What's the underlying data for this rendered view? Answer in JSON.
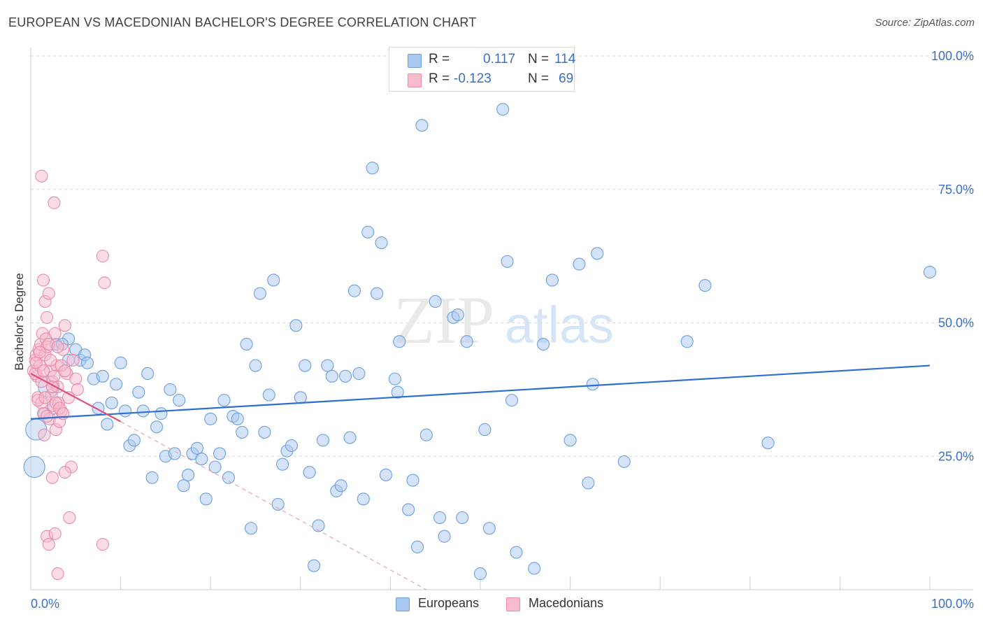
{
  "header": {
    "title": "EUROPEAN VS MACEDONIAN BACHELOR'S DEGREE CORRELATION CHART",
    "source": "Source: ZipAtlas.com"
  },
  "watermark": {
    "zip": "ZIP",
    "atlas": "atlas"
  },
  "legend": {
    "rows": [
      {
        "r_label": "R =",
        "r_value": "0.117",
        "n_label": "N =",
        "n_value": "114",
        "color": "#a9c8f0",
        "border": "#6b9fe0"
      },
      {
        "r_label": "R =",
        "r_value": "-0.123",
        "n_label": "N =",
        "n_value": "69",
        "color": "#f8bccd",
        "border": "#ec89a8"
      }
    ],
    "bottom": [
      {
        "label": "Europeans",
        "color": "#a9c8f0",
        "border": "#6b9fe0"
      },
      {
        "label": "Macedonians",
        "color": "#f8bccd",
        "border": "#ec89a8"
      }
    ]
  },
  "chart_data": {
    "type": "scatter",
    "title": "EUROPEAN VS MACEDONIAN BACHELOR'S DEGREE CORRELATION CHART",
    "xlabel": "",
    "ylabel": "Bachelor's Degree",
    "xlim": [
      0,
      100
    ],
    "ylim": [
      0,
      100
    ],
    "x_tick_labels": [
      "0.0%",
      "100.0%"
    ],
    "y_tick_labels": [
      "100.0%",
      "75.0%",
      "50.0%",
      "25.0%"
    ],
    "y_ticks": [
      100,
      75,
      50,
      25
    ],
    "grid": true,
    "series": [
      {
        "name": "Europeans",
        "color": "#6b9fe0",
        "fill": "#a9c8f0",
        "trend": {
          "x": [
            0,
            100
          ],
          "y": [
            32.0,
            42.0
          ],
          "color": "#2f6fd0"
        },
        "points": [
          {
            "x": 0.4,
            "y": 23,
            "big": true
          },
          {
            "x": 0.6,
            "y": 30,
            "big": true
          },
          {
            "x": 2,
            "y": 38,
            "big": true
          },
          {
            "x": 2.5,
            "y": 34
          },
          {
            "x": 1.5,
            "y": 33
          },
          {
            "x": 2.8,
            "y": 46
          },
          {
            "x": 4.2,
            "y": 47
          },
          {
            "x": 4.2,
            "y": 43
          },
          {
            "x": 3.5,
            "y": 46
          },
          {
            "x": 5,
            "y": 45
          },
          {
            "x": 5.5,
            "y": 43
          },
          {
            "x": 6,
            "y": 44
          },
          {
            "x": 6.3,
            "y": 42.5
          },
          {
            "x": 7,
            "y": 39.5
          },
          {
            "x": 7.5,
            "y": 34
          },
          {
            "x": 8,
            "y": 40
          },
          {
            "x": 8.5,
            "y": 31
          },
          {
            "x": 9,
            "y": 35
          },
          {
            "x": 9.5,
            "y": 38.5
          },
          {
            "x": 10,
            "y": 42.5
          },
          {
            "x": 10.5,
            "y": 33.5
          },
          {
            "x": 11,
            "y": 27
          },
          {
            "x": 11.5,
            "y": 28
          },
          {
            "x": 12,
            "y": 37
          },
          {
            "x": 12.5,
            "y": 33.5
          },
          {
            "x": 13,
            "y": 40.5
          },
          {
            "x": 13.5,
            "y": 21
          },
          {
            "x": 14,
            "y": 30.5
          },
          {
            "x": 14.5,
            "y": 33
          },
          {
            "x": 15,
            "y": 25
          },
          {
            "x": 15.5,
            "y": 37.5
          },
          {
            "x": 16,
            "y": 25.5
          },
          {
            "x": 16.5,
            "y": 35.5
          },
          {
            "x": 17,
            "y": 19.5
          },
          {
            "x": 17.5,
            "y": 21.5
          },
          {
            "x": 18,
            "y": 25.5
          },
          {
            "x": 18.5,
            "y": 26.5
          },
          {
            "x": 19,
            "y": 24.5
          },
          {
            "x": 19.5,
            "y": 17
          },
          {
            "x": 20,
            "y": 32
          },
          {
            "x": 20.5,
            "y": 23
          },
          {
            "x": 21,
            "y": 25.5
          },
          {
            "x": 21.5,
            "y": 35.5
          },
          {
            "x": 22,
            "y": 21
          },
          {
            "x": 22.5,
            "y": 32.5
          },
          {
            "x": 23,
            "y": 32
          },
          {
            "x": 23.5,
            "y": 29.5
          },
          {
            "x": 24,
            "y": 46
          },
          {
            "x": 24.5,
            "y": 11.5
          },
          {
            "x": 25,
            "y": 42
          },
          {
            "x": 25.5,
            "y": 55.5
          },
          {
            "x": 26,
            "y": 29.5
          },
          {
            "x": 26.5,
            "y": 36.5
          },
          {
            "x": 27,
            "y": 58
          },
          {
            "x": 27.5,
            "y": 16
          },
          {
            "x": 28,
            "y": 23.5
          },
          {
            "x": 28.5,
            "y": 26
          },
          {
            "x": 29,
            "y": 27
          },
          {
            "x": 29.5,
            "y": 49.5
          },
          {
            "x": 30,
            "y": 36
          },
          {
            "x": 30.5,
            "y": 42
          },
          {
            "x": 31,
            "y": 22
          },
          {
            "x": 31.5,
            "y": 4.5
          },
          {
            "x": 32,
            "y": 12
          },
          {
            "x": 32.5,
            "y": 28
          },
          {
            "x": 33,
            "y": 42
          },
          {
            "x": 33.5,
            "y": 40
          },
          {
            "x": 34,
            "y": 18.5
          },
          {
            "x": 34.5,
            "y": 19.5
          },
          {
            "x": 35,
            "y": 40
          },
          {
            "x": 35.5,
            "y": 28.5
          },
          {
            "x": 36,
            "y": 56
          },
          {
            "x": 36.5,
            "y": 40.5
          },
          {
            "x": 37,
            "y": 17
          },
          {
            "x": 37.5,
            "y": 67
          },
          {
            "x": 38,
            "y": 79
          },
          {
            "x": 38.5,
            "y": 55.5
          },
          {
            "x": 39,
            "y": 65
          },
          {
            "x": 39.5,
            "y": 21.5
          },
          {
            "x": 40.5,
            "y": 39.5
          },
          {
            "x": 40.8,
            "y": 37
          },
          {
            "x": 41,
            "y": 46.5
          },
          {
            "x": 42,
            "y": 15
          },
          {
            "x": 42.5,
            "y": 20.5
          },
          {
            "x": 43,
            "y": 8
          },
          {
            "x": 43.5,
            "y": 87
          },
          {
            "x": 44,
            "y": 29
          },
          {
            "x": 45,
            "y": 54
          },
          {
            "x": 45.5,
            "y": 13.5
          },
          {
            "x": 46,
            "y": 10
          },
          {
            "x": 47,
            "y": 51
          },
          {
            "x": 47.5,
            "y": 51.5
          },
          {
            "x": 48,
            "y": 13.5
          },
          {
            "x": 48.5,
            "y": 46.5
          },
          {
            "x": 50,
            "y": 3
          },
          {
            "x": 50.5,
            "y": 30
          },
          {
            "x": 51,
            "y": 11.5
          },
          {
            "x": 52.5,
            "y": 90
          },
          {
            "x": 53,
            "y": 61.5
          },
          {
            "x": 53.5,
            "y": 35.5
          },
          {
            "x": 54,
            "y": 7
          },
          {
            "x": 56,
            "y": 4
          },
          {
            "x": 57,
            "y": 46
          },
          {
            "x": 58,
            "y": 58
          },
          {
            "x": 60,
            "y": 28
          },
          {
            "x": 61,
            "y": 61
          },
          {
            "x": 62,
            "y": 20
          },
          {
            "x": 62.5,
            "y": 38.5
          },
          {
            "x": 63,
            "y": 63
          },
          {
            "x": 66,
            "y": 24
          },
          {
            "x": 73,
            "y": 46.5
          },
          {
            "x": 75,
            "y": 57
          },
          {
            "x": 82,
            "y": 27.5
          },
          {
            "x": 100,
            "y": 59.5
          }
        ]
      },
      {
        "name": "Macedonians",
        "color": "#ec89a8",
        "fill": "#f8bccd",
        "trend": {
          "x": [
            0,
            10
          ],
          "y": [
            40.5,
            31.5
          ],
          "color": "#e0507d"
        },
        "trend_extension": {
          "x": [
            10,
            44
          ],
          "y": [
            31.5,
            0
          ]
        },
        "points": [
          {
            "x": 0.3,
            "y": 41
          },
          {
            "x": 0.5,
            "y": 43
          },
          {
            "x": 0.6,
            "y": 44
          },
          {
            "x": 0.7,
            "y": 40
          },
          {
            "x": 0.8,
            "y": 36
          },
          {
            "x": 0.9,
            "y": 45
          },
          {
            "x": 1,
            "y": 42
          },
          {
            "x": 1.1,
            "y": 46
          },
          {
            "x": 1.2,
            "y": 35
          },
          {
            "x": 1.3,
            "y": 48
          },
          {
            "x": 1.4,
            "y": 33
          },
          {
            "x": 1.5,
            "y": 29
          },
          {
            "x": 1.6,
            "y": 44
          },
          {
            "x": 1.7,
            "y": 47
          },
          {
            "x": 1.8,
            "y": 45.5
          },
          {
            "x": 1.2,
            "y": 77.5
          },
          {
            "x": 1.4,
            "y": 58
          },
          {
            "x": 1.6,
            "y": 54
          },
          {
            "x": 1.8,
            "y": 51
          },
          {
            "x": 2,
            "y": 55.5
          },
          {
            "x": 2.1,
            "y": 32
          },
          {
            "x": 2.2,
            "y": 41
          },
          {
            "x": 2.3,
            "y": 36.5
          },
          {
            "x": 2.4,
            "y": 39
          },
          {
            "x": 2.5,
            "y": 34.5
          },
          {
            "x": 2.6,
            "y": 72.5
          },
          {
            "x": 2.7,
            "y": 48
          },
          {
            "x": 2.8,
            "y": 30
          },
          {
            "x": 2.9,
            "y": 42
          },
          {
            "x": 3,
            "y": 38
          },
          {
            "x": 3.1,
            "y": 35
          },
          {
            "x": 3.2,
            "y": 31.5
          },
          {
            "x": 3.4,
            "y": 33.5
          },
          {
            "x": 3.6,
            "y": 45
          },
          {
            "x": 3.8,
            "y": 49.5
          },
          {
            "x": 4,
            "y": 40.5
          },
          {
            "x": 4.2,
            "y": 36
          },
          {
            "x": 4.5,
            "y": 23
          },
          {
            "x": 4.7,
            "y": 43
          },
          {
            "x": 5,
            "y": 39.5
          },
          {
            "x": 5.2,
            "y": 37.5
          },
          {
            "x": 1.8,
            "y": 10
          },
          {
            "x": 2,
            "y": 8.5
          },
          {
            "x": 2.7,
            "y": 10.5
          },
          {
            "x": 3,
            "y": 3
          },
          {
            "x": 4.3,
            "y": 13.5
          },
          {
            "x": 8,
            "y": 62.5
          },
          {
            "x": 8.2,
            "y": 57.5
          },
          {
            "x": 8,
            "y": 8.5
          },
          {
            "x": 3.8,
            "y": 22
          },
          {
            "x": 2.4,
            "y": 21
          },
          {
            "x": 0.5,
            "y": 40.5
          },
          {
            "x": 0.6,
            "y": 42.5
          },
          {
            "x": 0.8,
            "y": 35.5
          },
          {
            "x": 1,
            "y": 44.5
          },
          {
            "x": 1.2,
            "y": 39
          },
          {
            "x": 1.4,
            "y": 41
          },
          {
            "x": 1.6,
            "y": 36
          },
          {
            "x": 1.8,
            "y": 32.5
          },
          {
            "x": 2,
            "y": 46
          },
          {
            "x": 2.2,
            "y": 43
          },
          {
            "x": 2.4,
            "y": 38
          },
          {
            "x": 2.6,
            "y": 40
          },
          {
            "x": 2.8,
            "y": 35
          },
          {
            "x": 3,
            "y": 45.5
          },
          {
            "x": 3.2,
            "y": 34
          },
          {
            "x": 3.4,
            "y": 42
          },
          {
            "x": 3.6,
            "y": 33
          },
          {
            "x": 3.8,
            "y": 41
          }
        ]
      }
    ]
  }
}
